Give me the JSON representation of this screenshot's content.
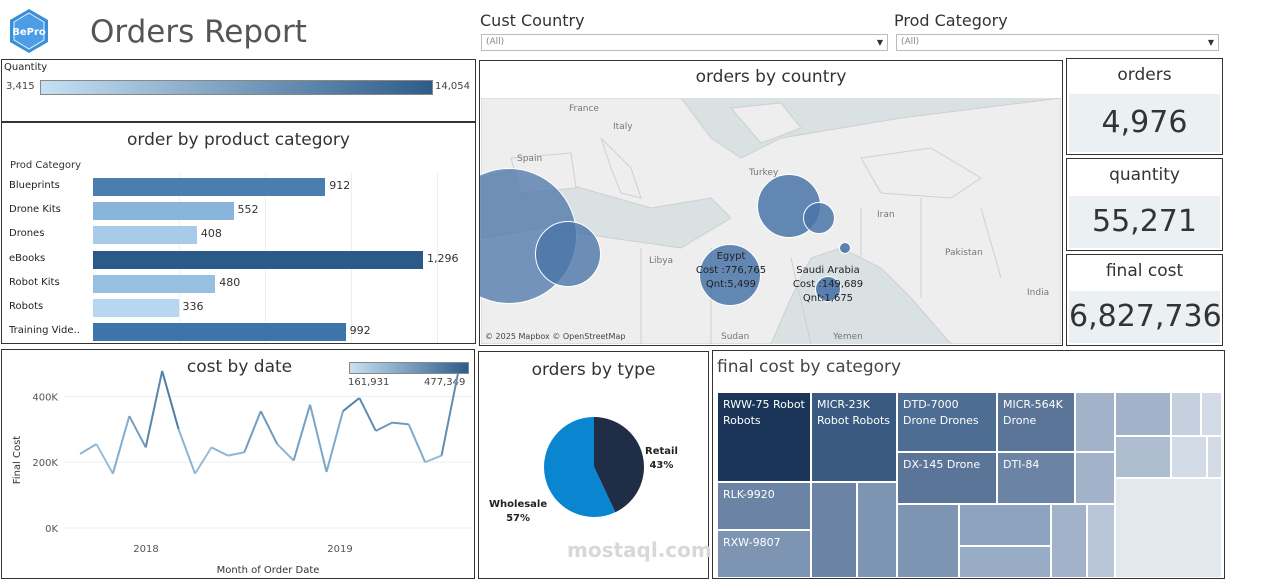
{
  "header": {
    "logo_text": "BePro",
    "title": "Orders Report"
  },
  "filters": [
    {
      "label": "Cust Country",
      "value": "(All)"
    },
    {
      "label": "Prod Category",
      "value": "(All)"
    }
  ],
  "quantity_legend": {
    "label": "Quantity",
    "min": "3,415",
    "max": "14,054"
  },
  "kpis": {
    "orders": {
      "label": "orders",
      "value": "4,976"
    },
    "quantity": {
      "label": "quantity",
      "value": "55,271"
    },
    "final_cost": {
      "label": "final cost",
      "value": "6,827,736"
    }
  },
  "map": {
    "title": "orders by country",
    "labels": {
      "france": "France",
      "spain": "Spain",
      "italy": "Italy",
      "turkey": "Turkey",
      "iran": "Iran",
      "libya": "Libya",
      "pakistan": "Pakistan",
      "india": "India",
      "sudan": "Sudan",
      "yemen": "Yemen"
    },
    "egypt": {
      "name": "Egypt",
      "cost": "Cost :776,765",
      "qnt": "Qnt:5,499"
    },
    "saudi": {
      "name": "Saudi Arabia",
      "cost": "Cost :149,689",
      "qnt": "Qnt:1,675"
    },
    "attribution": "© 2025 Mapbox © OpenStreetMap"
  },
  "category_chart": {
    "title": "order by product category",
    "axis_header": "Prod Category",
    "rows": [
      {
        "label": "Blueprints",
        "value": 912,
        "display": "912",
        "color": "#4a7eb0"
      },
      {
        "label": "Drone Kits",
        "value": 552,
        "display": "552",
        "color": "#89b5dc"
      },
      {
        "label": "Drones",
        "value": 408,
        "display": "408",
        "color": "#a8cbe9"
      },
      {
        "label": "eBooks",
        "value": 1296,
        "display": "1,296",
        "color": "#2b5a89"
      },
      {
        "label": "Robot Kits",
        "value": 480,
        "display": "480",
        "color": "#97bfe2"
      },
      {
        "label": "Robots",
        "value": 336,
        "display": "336",
        "color": "#b8d6ef"
      },
      {
        "label": "Training Vide..",
        "value": 992,
        "display": "992",
        "color": "#3e74a9"
      }
    ]
  },
  "cost_chart": {
    "title": "cost by date",
    "legend_min": "161,931",
    "legend_max": "477,349",
    "ylabel": "Final Cost",
    "xlabel": "Month of Order Date",
    "yticks": [
      "0K",
      "200K",
      "400K"
    ],
    "xticks": [
      "2018",
      "2019"
    ]
  },
  "chart_data": {
    "type": "line",
    "title": "cost by date",
    "xlabel": "Month of Order Date",
    "ylabel": "Final Cost",
    "ylim": [
      0,
      480000
    ],
    "values": [
      225000,
      255000,
      165000,
      340000,
      245000,
      477000,
      300000,
      165000,
      245000,
      220000,
      230000,
      355000,
      255000,
      205000,
      375000,
      170000,
      355000,
      395000,
      295000,
      320000,
      315000,
      200000,
      220000,
      470000
    ]
  },
  "type_chart": {
    "title": "orders by type",
    "slices": [
      {
        "name": "Retail",
        "pct": "43%",
        "value": 43,
        "color": "#1f2d47"
      },
      {
        "name": "Wholesale",
        "pct": "57%",
        "value": 57,
        "color": "#0a86d0"
      }
    ]
  },
  "treemap": {
    "title": "final cost by category",
    "labels": {
      "rww75": "RWW-75 Robot Robots",
      "micr23k": "MICR-23K Robot Robots",
      "dtd7000": "DTD-7000 Drone Drones",
      "micr564k": "MICR-564K Drone",
      "dx145": "DX-145 Drone",
      "dti84": "DTI-84",
      "rlk9920": "RLK-9920",
      "rxw9807": "RXW-9807"
    },
    "colors": {
      "dark": "#1a3558",
      "mid": "#3c5a80",
      "mid2": "#5b7598",
      "light": "#7d94b2",
      "lighter": "#a2b3c9",
      "lightest": "#d3dbe6"
    }
  },
  "watermark": "mostaql.com"
}
